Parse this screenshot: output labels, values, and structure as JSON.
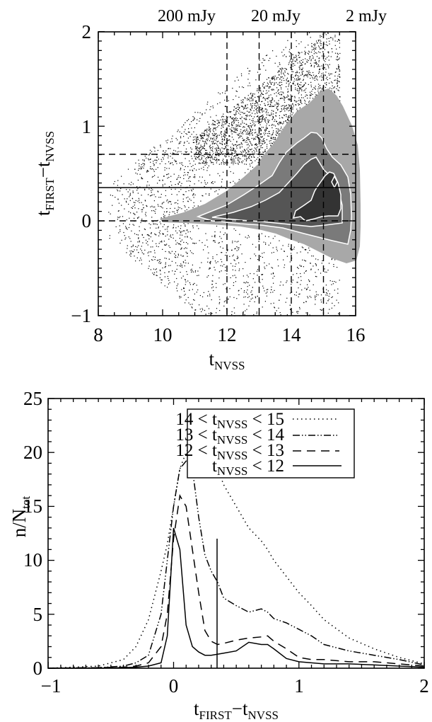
{
  "chart_data": [
    {
      "type": "scatter",
      "title": "",
      "xlabel": "t_NVSS",
      "ylabel": "t_FIRST - t_NVSS",
      "xlim": [
        8,
        16
      ],
      "ylim": [
        -1,
        2
      ],
      "x_ticks": [
        "8",
        "10",
        "12",
        "14",
        "16"
      ],
      "y_ticks": [
        "-1",
        "0",
        "1",
        "2"
      ],
      "top_annotations": [
        {
          "label": "200 mJy",
          "x": 12
        },
        {
          "label": "20 mJy",
          "x": 13
        },
        {
          "label": "2 mJy",
          "x": 14.9
        }
      ],
      "vertical_dashed_lines_x": [
        12,
        13,
        14,
        15
      ],
      "horizontal_dashed_lines_y": [
        0,
        0.7
      ],
      "horizontal_solid_line_y": 0.35,
      "contour_levels": 4,
      "contour_peak": {
        "x": 14.65,
        "y": 0.25
      },
      "description": "Scatter of individual sources with filled grayscale density contours concentrated near t_NVSS 13-15.3, peaking near y 0.25"
    },
    {
      "type": "line",
      "title": "",
      "xlabel": "t_FIRST - t_NVSS",
      "ylabel": "n/N_tot",
      "xlim": [
        -1,
        2
      ],
      "ylim": [
        0,
        25
      ],
      "x_ticks": [
        "-1",
        "0",
        "1",
        "2"
      ],
      "y_ticks": [
        "0",
        "5",
        "10",
        "15",
        "20",
        "25"
      ],
      "legend_position": "upper right",
      "vertical_marker": {
        "x": 0.35,
        "y_top": 12
      },
      "x": [
        -1.0,
        -0.6,
        -0.4,
        -0.3,
        -0.2,
        -0.1,
        -0.05,
        0.0,
        0.05,
        0.1,
        0.15,
        0.2,
        0.25,
        0.3,
        0.35,
        0.4,
        0.5,
        0.6,
        0.7,
        0.75,
        0.8,
        0.9,
        1.0,
        1.1,
        1.2,
        1.4,
        1.6,
        1.8,
        2.0
      ],
      "series": [
        {
          "name": "14 < t_NVSS < 15",
          "style": "dotted",
          "values": [
            0,
            0.2,
            0.8,
            2.0,
            4.5,
            9.0,
            11.5,
            15.0,
            18.5,
            20.0,
            21.0,
            21.8,
            21.5,
            20.2,
            18.5,
            17.0,
            15.0,
            13.0,
            11.8,
            11.0,
            10.0,
            8.5,
            7.0,
            5.8,
            4.5,
            2.8,
            1.8,
            1.0,
            0.4
          ]
        },
        {
          "name": "13 < t_NVSS < 14",
          "style": "dash-dot-dot",
          "values": [
            0,
            0.05,
            0.2,
            0.5,
            1.2,
            5.0,
            10.0,
            15.0,
            18.5,
            19.2,
            18.5,
            14.0,
            10.5,
            9.0,
            8.0,
            6.5,
            5.8,
            5.2,
            5.5,
            5.2,
            4.6,
            4.2,
            3.6,
            3.0,
            2.2,
            1.6,
            1.2,
            0.8,
            0.3
          ]
        },
        {
          "name": "12 < t_NVSS < 13",
          "style": "dashed",
          "values": [
            0,
            0.05,
            0.1,
            0.2,
            0.5,
            2.0,
            5.0,
            12.0,
            16.0,
            15.0,
            11.0,
            7.0,
            3.5,
            2.5,
            2.2,
            2.3,
            2.6,
            2.8,
            2.9,
            3.0,
            2.5,
            1.8,
            1.0,
            0.8,
            0.8,
            0.6,
            0.6,
            0.4,
            0.2
          ]
        },
        {
          "name": "t_NVSS < 12",
          "style": "solid",
          "values": [
            0,
            0,
            0.05,
            0.1,
            0.2,
            0.5,
            3.0,
            13.0,
            11.0,
            4.0,
            2.0,
            1.5,
            1.2,
            1.2,
            1.3,
            1.4,
            1.6,
            2.4,
            2.2,
            2.2,
            1.8,
            0.9,
            0.6,
            0.5,
            0.4,
            0.4,
            0.3,
            0.2,
            0.1
          ]
        }
      ]
    }
  ],
  "top_plot": {
    "flux_labels": [
      "200 mJy",
      "20 mJy",
      "2 mJy"
    ],
    "x_tick_labels": [
      "8",
      "10",
      "12",
      "14",
      "16"
    ],
    "y_tick_labels": [
      "−1",
      "0",
      "1",
      "2"
    ],
    "xlabel_main": "t",
    "xlabel_sub": "NVSS",
    "ylabel_main1": "t",
    "ylabel_sub1": "FIRST",
    "ylabel_dash": "−t",
    "ylabel_sub2": "NVSS"
  },
  "bottom_plot": {
    "x_tick_labels": [
      "−1",
      "0",
      "1",
      "2"
    ],
    "y_tick_labels": [
      "0",
      "5",
      "10",
      "15",
      "20",
      "25"
    ],
    "xlabel_main1": "t",
    "xlabel_sub1": "FIRST",
    "xlabel_dash": "−t",
    "xlabel_sub2": "NVSS",
    "ylabel_main": "n/N",
    "ylabel_sub": "tot",
    "legend": [
      {
        "prefix": "14 < t",
        "sub": "NVSS",
        "suffix": " < 15",
        "style": "dotted"
      },
      {
        "prefix": "13 < t",
        "sub": "NVSS",
        "suffix": " < 14",
        "style": "dash-dot-dot"
      },
      {
        "prefix": "12 < t",
        "sub": "NVSS",
        "suffix": " < 13",
        "style": "dashed"
      },
      {
        "prefix": "t",
        "sub": "NVSS",
        "suffix": " < 12",
        "style": "solid"
      }
    ]
  },
  "colors": {
    "axis": "#000000",
    "contour_level1": "#a8a8a8",
    "contour_level2": "#7a7a7a",
    "contour_level3": "#555555",
    "contour_level4": "#333333",
    "contour_line": "#ffffff"
  }
}
